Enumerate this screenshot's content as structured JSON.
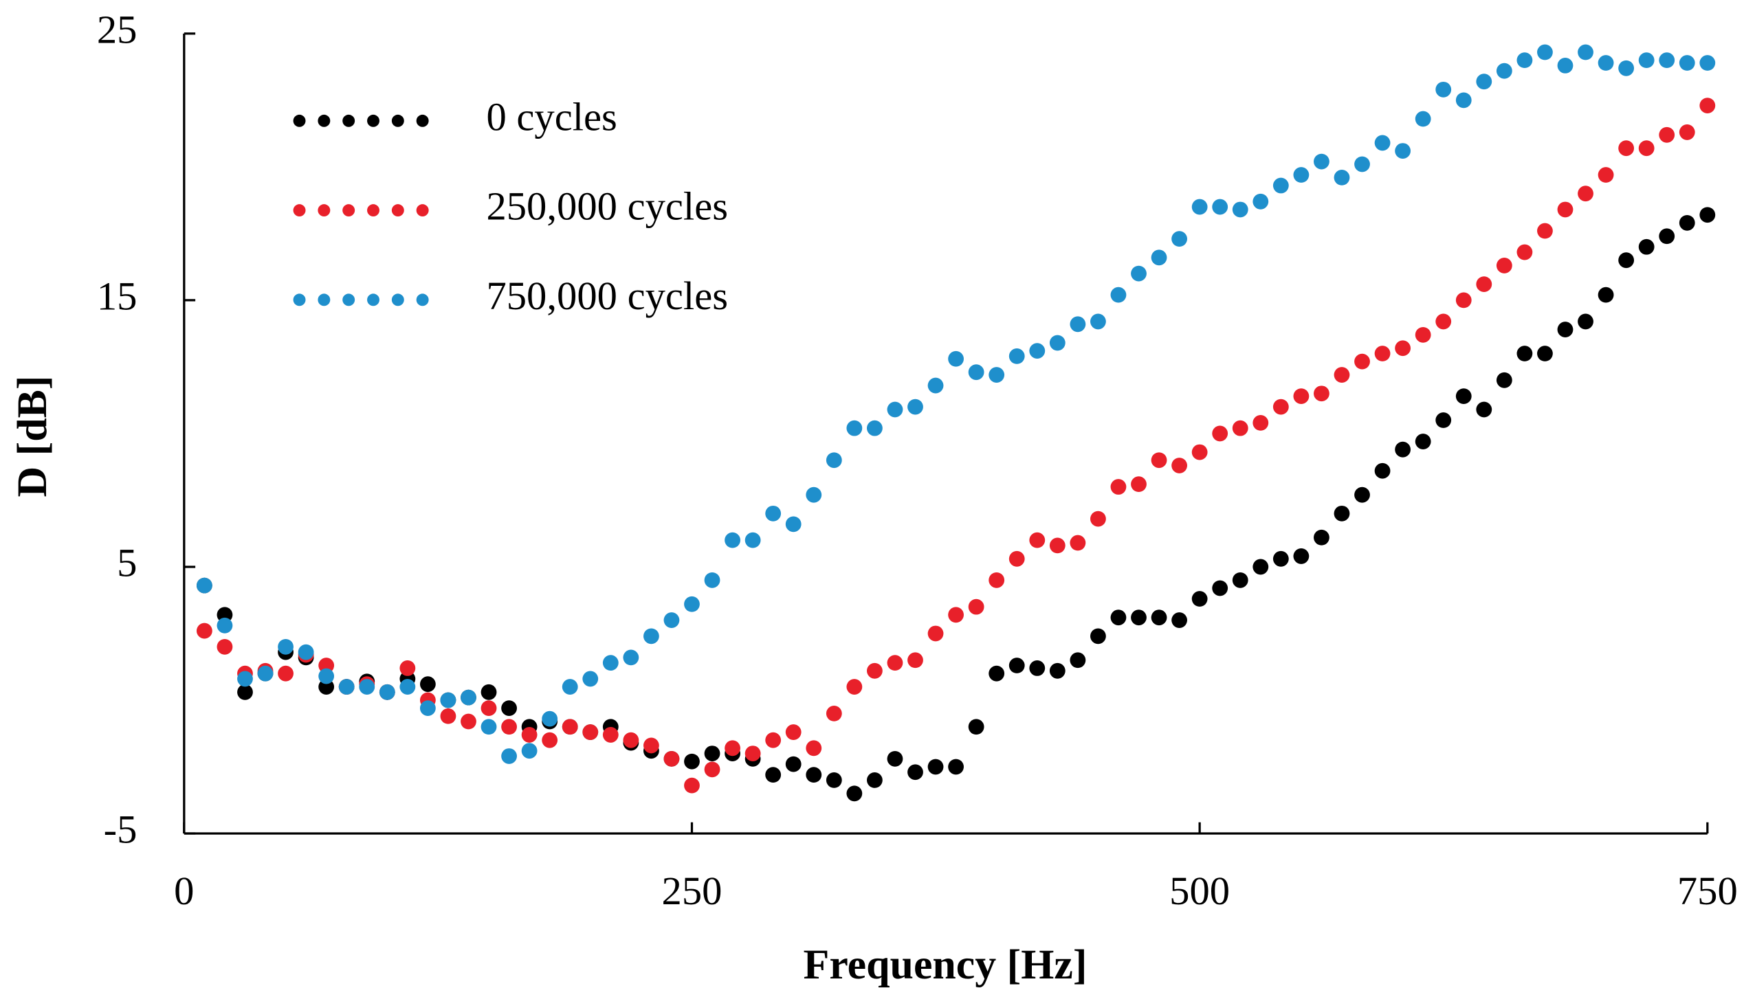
{
  "chart_data": {
    "type": "scatter",
    "xlabel": "Frequency  [Hz]",
    "ylabel": "D [dB]",
    "xlim": [
      0,
      750
    ],
    "xticks": [
      0,
      250,
      500,
      750
    ],
    "ylim": [
      -5,
      25
    ],
    "yticks": [
      -5,
      5,
      15,
      25
    ],
    "legend": "upper left",
    "x": [
      10,
      20,
      30,
      40,
      50,
      60,
      70,
      80,
      90,
      100,
      110,
      120,
      130,
      140,
      150,
      160,
      170,
      180,
      190,
      200,
      210,
      220,
      230,
      240,
      250,
      260,
      270,
      280,
      290,
      300,
      310,
      320,
      330,
      340,
      350,
      360,
      370,
      380,
      390,
      400,
      410,
      420,
      430,
      440,
      450,
      460,
      470,
      480,
      490,
      500,
      510,
      520,
      530,
      540,
      550,
      560,
      570,
      580,
      590,
      600,
      610,
      620,
      630,
      640,
      650,
      660,
      670,
      680,
      690,
      700,
      710,
      720,
      730,
      740,
      750
    ],
    "series": [
      {
        "name": "0 cycles",
        "color": "#000000",
        "values": [
          4.3,
          3.2,
          0.3,
          1.0,
          1.8,
          1.6,
          0.5,
          0.5,
          0.7,
          0.3,
          0.8,
          0.6,
          0.0,
          0.1,
          0.3,
          -0.3,
          -1.0,
          -0.8,
          -1.0,
          -1.2,
          -1.0,
          -1.6,
          -1.9,
          -2.2,
          -2.3,
          -2.0,
          -2.0,
          -2.2,
          -2.8,
          -2.4,
          -2.8,
          -3.0,
          -3.5,
          -3.0,
          -2.2,
          -2.7,
          -2.5,
          -2.5,
          -1.0,
          1.0,
          1.3,
          1.2,
          1.1,
          1.5,
          2.4,
          3.1,
          3.1,
          3.1,
          3.0,
          3.8,
          4.2,
          4.5,
          5.0,
          5.3,
          5.4,
          6.1,
          7.0,
          7.7,
          8.6,
          9.4,
          9.7,
          10.5,
          11.4,
          10.9,
          12.0,
          13.0,
          13.0,
          13.9,
          14.2,
          15.2,
          16.5,
          17.0,
          17.4,
          17.9,
          18.2
        ]
      },
      {
        "name": "250,000 cycles",
        "color": "#e8202a",
        "values": [
          2.6,
          2.0,
          1.0,
          1.1,
          1.0,
          1.7,
          1.3,
          0.5,
          0.6,
          0.3,
          1.2,
          0.0,
          -0.6,
          -0.8,
          -0.3,
          -1.0,
          -1.3,
          -1.5,
          -1.0,
          -1.2,
          -1.3,
          -1.5,
          -1.7,
          -2.2,
          -3.2,
          -2.6,
          -1.8,
          -2.0,
          -1.5,
          -1.2,
          -1.8,
          -0.5,
          0.5,
          1.1,
          1.4,
          1.5,
          2.5,
          3.2,
          3.5,
          4.5,
          5.3,
          6.0,
          5.8,
          5.9,
          6.8,
          8.0,
          8.1,
          9.0,
          8.8,
          9.3,
          10.0,
          10.2,
          10.4,
          11.0,
          11.4,
          11.5,
          12.2,
          12.7,
          13.0,
          13.2,
          13.7,
          14.2,
          15.0,
          15.6,
          16.3,
          16.8,
          17.6,
          18.4,
          19.0,
          19.7,
          20.7,
          20.7,
          21.2,
          21.3,
          22.3
        ]
      },
      {
        "name": "750,000 cycles",
        "color": "#1f8fcc",
        "values": [
          4.3,
          2.8,
          0.8,
          1.0,
          2.0,
          1.8,
          0.9,
          0.5,
          0.5,
          0.3,
          0.5,
          -0.3,
          0.0,
          0.1,
          -1.0,
          -2.1,
          -1.9,
          -0.7,
          0.5,
          0.8,
          1.4,
          1.6,
          2.4,
          3.0,
          3.6,
          4.5,
          6.0,
          6.0,
          7.0,
          6.6,
          7.7,
          9.0,
          10.2,
          10.2,
          10.9,
          11.0,
          11.8,
          12.8,
          12.3,
          12.2,
          12.9,
          13.1,
          13.4,
          14.1,
          14.2,
          15.2,
          16.0,
          16.6,
          17.3,
          18.5,
          18.5,
          18.4,
          18.7,
          19.3,
          19.7,
          20.2,
          19.6,
          20.1,
          20.9,
          20.6,
          21.8,
          22.9,
          22.5,
          23.2,
          23.6,
          24.0,
          24.3,
          23.8,
          24.3,
          23.9,
          23.7,
          24.0,
          24.0,
          23.9,
          23.9
        ]
      }
    ]
  }
}
